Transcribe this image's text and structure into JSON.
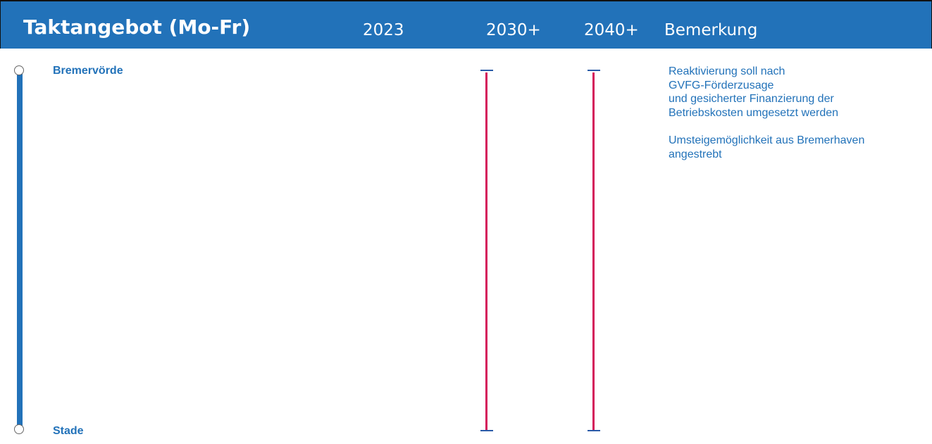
{
  "header": {
    "title": "Taktangebot (Mo-Fr)",
    "columns": [
      "2023",
      "2030+",
      "2040+",
      "Bemerkung"
    ]
  },
  "route": {
    "stations": [
      "Bremervörde",
      "Stade"
    ],
    "line_color": "#2272b9"
  },
  "services": {
    "2023": null,
    "2030+": {
      "color": "#d4145a"
    },
    "2040+": {
      "color": "#d4145a"
    }
  },
  "remarks": [
    "Reaktivierung soll nach",
    "GVFG-Förderzusage",
    "und gesicherter Finanzierung der",
    "Betriebskosten umgesetzt werden",
    "Umsteigemöglichkeit aus Bremerhaven",
    "angestrebt"
  ],
  "colors": {
    "header_bg": "#2272b9",
    "text_blue": "#2272b9",
    "service_red": "#d4145a",
    "cap_blue": "#2a5ba8"
  }
}
